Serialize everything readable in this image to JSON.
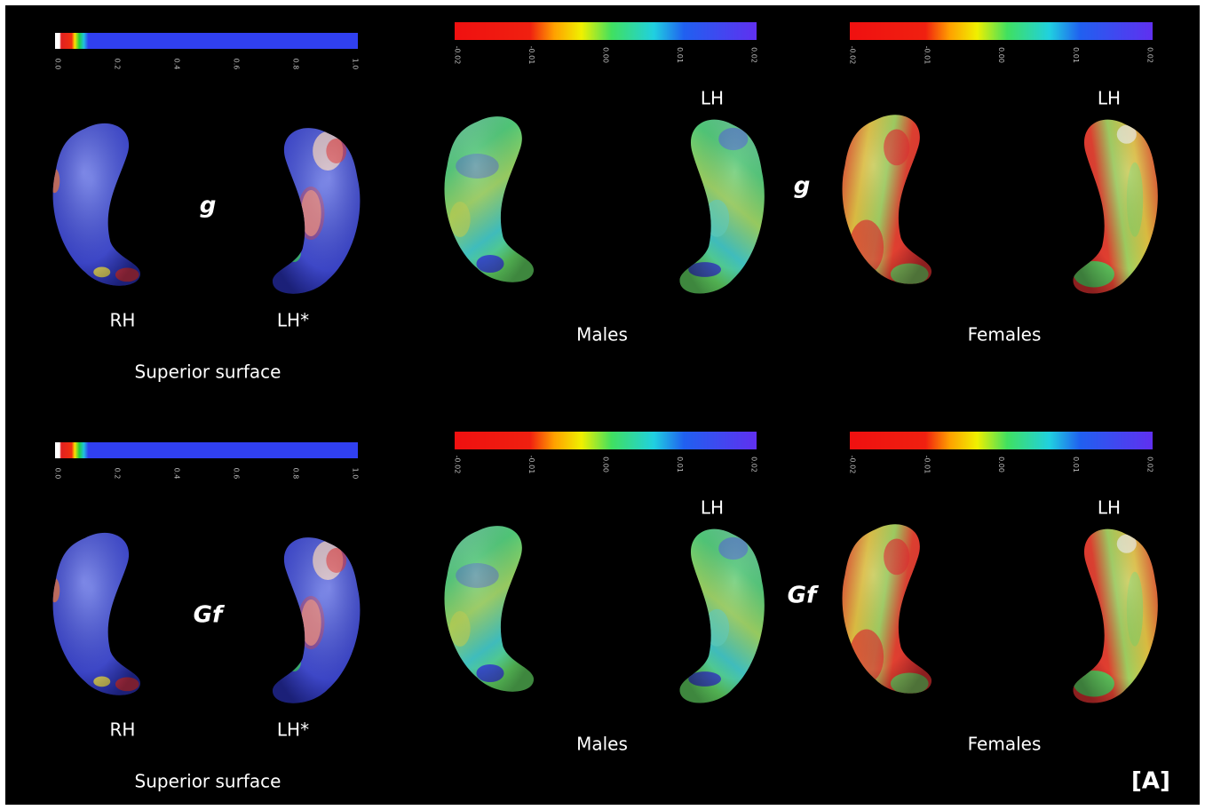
{
  "rows": [
    {
      "variable": "g",
      "left": {
        "colorbar_ticks": [
          "0.0",
          "0.2",
          "0.4",
          "0.6",
          "0.8",
          "1.0"
        ],
        "hemispheres": [
          "RH",
          "LH*"
        ],
        "caption": "Superior surface"
      },
      "males": {
        "colorbar_ticks": [
          "-0.02",
          "-0.01",
          "0.00",
          "0.01",
          "0.02"
        ],
        "hemisphere": "LH",
        "caption": "Males"
      },
      "females": {
        "colorbar_ticks": [
          "-0.02",
          "-0.01",
          "0.00",
          "0.01",
          "0.02"
        ],
        "hemisphere": "LH",
        "caption": "Females"
      }
    },
    {
      "variable": "Gf",
      "left": {
        "colorbar_ticks": [
          "0.0",
          "0.2",
          "0.4",
          "0.6",
          "0.8",
          "1.0"
        ],
        "hemispheres": [
          "RH",
          "LH*"
        ],
        "caption": "Superior surface"
      },
      "males": {
        "colorbar_ticks": [
          "-0.02",
          "-0.01",
          "0.00",
          "0.01",
          "0.02"
        ],
        "hemisphere": "LH",
        "caption": "Males"
      },
      "females": {
        "colorbar_ticks": [
          "-0.02",
          "-0.01",
          "0.00",
          "0.01",
          "0.02"
        ],
        "hemisphere": "LH",
        "caption": "Females"
      }
    }
  ],
  "panel_label": "[A]"
}
